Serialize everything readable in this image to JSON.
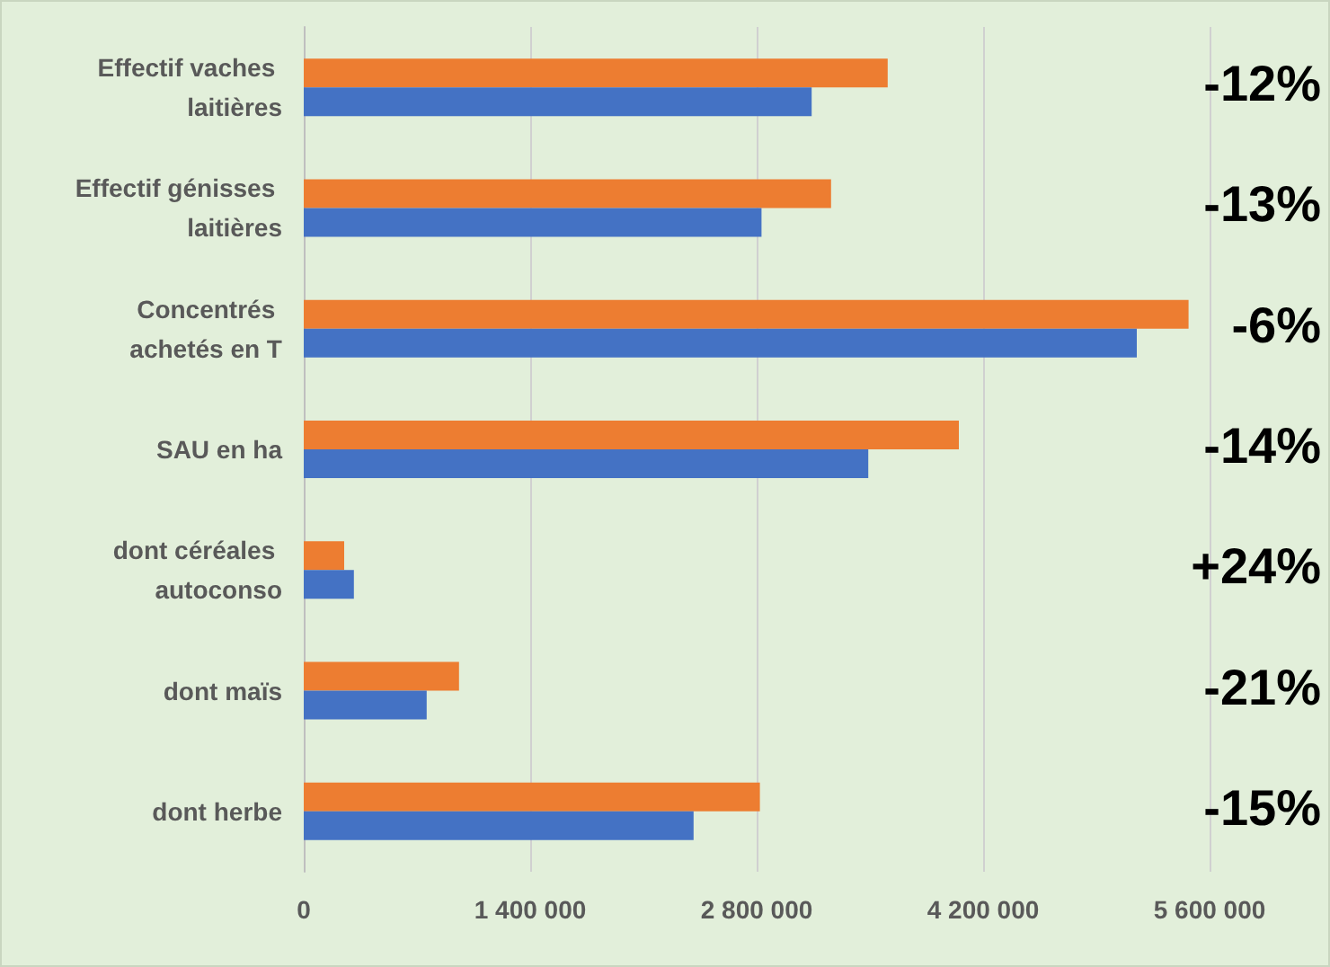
{
  "chart_data": {
    "type": "bar",
    "orientation": "horizontal",
    "categories": [
      "Effectif vaches laitières",
      "Effectif génisses laitières",
      "Concentrés achetés en T",
      "SAU en ha",
      "dont céréales autoconso",
      "dont maïs",
      "dont herbe"
    ],
    "series": [
      {
        "color": "#ed7d31",
        "values": [
          3610000,
          3260000,
          5470000,
          4050000,
          250000,
          960000,
          2820000
        ]
      },
      {
        "color": "#4472c4",
        "values": [
          3140000,
          2830000,
          5150000,
          3490000,
          310000,
          760000,
          2410000
        ]
      }
    ],
    "xlim": [
      0,
      5600000
    ],
    "xticks": [
      0,
      {
        "value": 1400000,
        "label": "1 400 000"
      },
      {
        "value": 2800000,
        "label": "2 800 000"
      },
      {
        "value": 4200000,
        "label": "4 200 000"
      },
      {
        "value": 5600000,
        "label": "5 600 000"
      }
    ],
    "grid": "x",
    "annotations": [
      "-12%",
      "-13%",
      "-6%",
      "-14%",
      "+24%",
      "-21%",
      "-15%"
    ]
  }
}
